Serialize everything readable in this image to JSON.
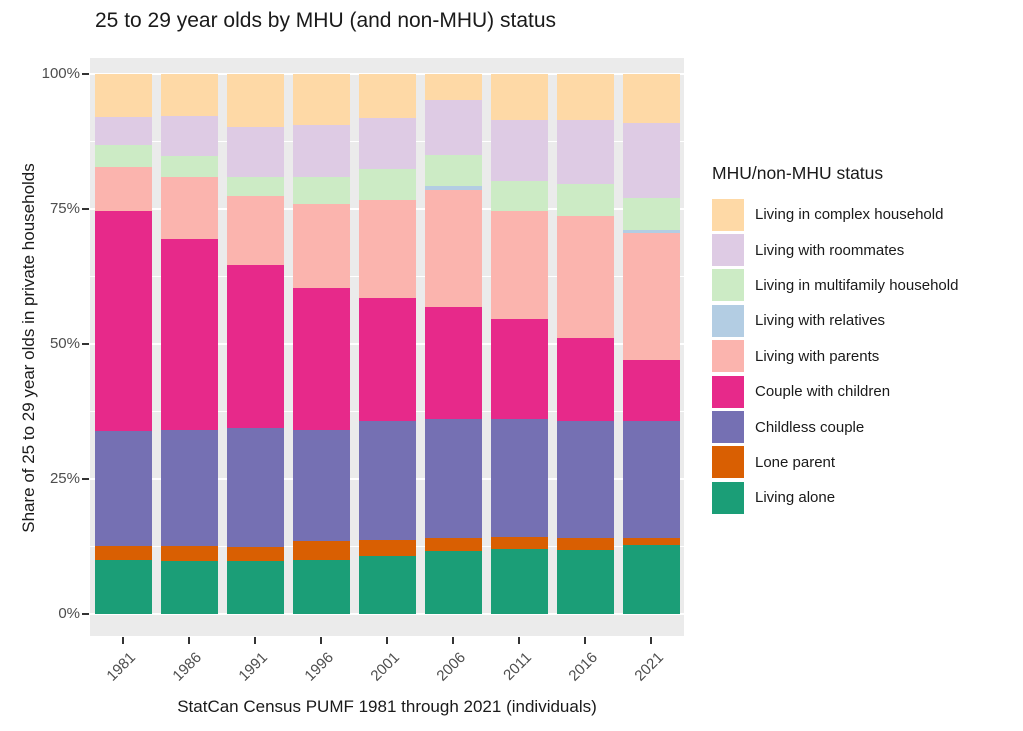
{
  "title": "25 to 29 year olds by MHU (and non-MHU) status",
  "chart_data": {
    "type": "bar",
    "stacked": true,
    "title": "25 to 29 year olds by MHU (and non-MHU) status",
    "xlabel": "StatCan Census PUMF 1981 through 2021 (individuals)",
    "ylabel": "Share of 25 to 29 year olds in private households",
    "categories": [
      "1981",
      "1986",
      "1991",
      "1996",
      "2001",
      "2006",
      "2011",
      "2016",
      "2021"
    ],
    "y_axis": {
      "tick_labels": [
        "0%",
        "25%",
        "50%",
        "75%",
        "100%"
      ],
      "tick_values": [
        0,
        25,
        50,
        75,
        100
      ],
      "minor_tick_values": [
        12.5,
        37.5,
        62.5,
        87.5
      ],
      "ylim": [
        0,
        100
      ],
      "grid": true
    },
    "legend": {
      "title": "MHU/non-MHU status",
      "position": "right",
      "order": "top-of-stack-first"
    },
    "series": [
      {
        "name": "Living alone",
        "color": "#1B9E77",
        "values": [
          10.0,
          9.8,
          9.8,
          10.0,
          10.7,
          11.7,
          12.0,
          11.9,
          12.8
        ]
      },
      {
        "name": "Lone parent",
        "color": "#D95F02",
        "values": [
          2.6,
          2.8,
          2.7,
          3.5,
          3.0,
          2.3,
          2.2,
          2.1,
          1.2
        ]
      },
      {
        "name": "Childless couple",
        "color": "#7570B3",
        "values": [
          21.3,
          21.5,
          21.9,
          20.6,
          22.1,
          22.1,
          21.9,
          21.7,
          21.7
        ]
      },
      {
        "name": "Couple with children",
        "color": "#E7298A",
        "values": [
          40.8,
          35.3,
          30.2,
          26.2,
          22.7,
          20.8,
          18.5,
          15.4,
          11.3
        ]
      },
      {
        "name": "Living with parents",
        "color": "#FBB4AE",
        "values": [
          8.0,
          11.5,
          12.8,
          15.6,
          18.2,
          21.6,
          20.0,
          22.6,
          23.6
        ]
      },
      {
        "name": "Living with relatives",
        "color": "#B3CDE3",
        "values": [
          0,
          0,
          0,
          0,
          0,
          0.8,
          0,
          0,
          0.5
        ]
      },
      {
        "name": "Living in multifamily household",
        "color": "#CCEBC5",
        "values": [
          4.2,
          4.0,
          3.6,
          5.1,
          5.8,
          5.7,
          5.5,
          5.9,
          6.0
        ]
      },
      {
        "name": "Living with roommates",
        "color": "#DECBE4",
        "values": [
          5.2,
          7.4,
          9.1,
          9.5,
          9.3,
          10.1,
          11.3,
          11.8,
          13.8
        ]
      },
      {
        "name": "Living in complex household",
        "color": "#FED9A6",
        "values": [
          7.9,
          7.7,
          9.9,
          9.5,
          8.2,
          4.9,
          8.6,
          8.6,
          9.1
        ]
      }
    ]
  },
  "colors": {
    "background": "#FFFFFF",
    "panel_bg": "#EBEBEB",
    "grid": "#FFFFFF",
    "axis_text": "#4D4D4D",
    "tick_mark": "#333333",
    "text": "#1A1A1A"
  }
}
